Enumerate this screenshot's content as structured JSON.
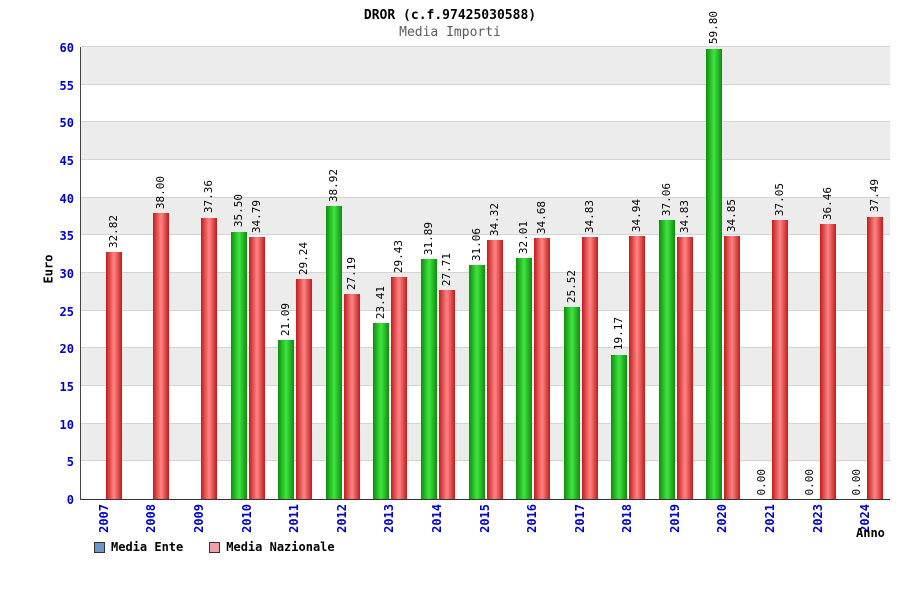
{
  "header": {
    "title": "DROR (c.f.97425030588)",
    "subtitle": "Media Importi"
  },
  "axes": {
    "y_label": "Euro",
    "x_label": "Anno"
  },
  "legend": {
    "items": [
      {
        "label": "Media Ente",
        "swatch_color": "#6e96c8"
      },
      {
        "label": "Media Nazionale",
        "swatch_color": "#f0a0a8"
      }
    ]
  },
  "chart_data": {
    "type": "bar",
    "title": "Media Importi",
    "xlabel": "Anno",
    "ylabel": "Euro",
    "ylim": [
      0,
      60
    ],
    "ytick_step": 5,
    "grid": true,
    "legend_position": "bottom-left",
    "tick_color": "#0000cc",
    "band_color": "#ececec",
    "grid_color": "#d4d4d4",
    "value_label_decimals": 2,
    "categories": [
      "2007",
      "2008",
      "2009",
      "2010",
      "2011",
      "2012",
      "2013",
      "2014",
      "2015",
      "2016",
      "2017",
      "2018",
      "2019",
      "2020",
      "2021",
      "2023",
      "2024"
    ],
    "series": [
      {
        "name": "Media Ente",
        "bar_edge_color": "#0e8c0e",
        "bar_mid_color": "#3fe53f",
        "values": [
          null,
          null,
          null,
          35.5,
          21.09,
          38.92,
          23.41,
          31.89,
          31.06,
          32.01,
          25.52,
          19.17,
          37.06,
          59.8,
          0.0,
          0.0,
          0.0
        ]
      },
      {
        "name": "Media Nazionale",
        "bar_edge_color": "#c41a1a",
        "bar_mid_color": "#ff8585",
        "values": [
          32.82,
          38.0,
          37.36,
          34.79,
          29.24,
          27.19,
          29.43,
          27.71,
          34.32,
          34.68,
          34.83,
          34.94,
          34.83,
          34.85,
          37.05,
          36.46,
          37.49
        ]
      }
    ]
  }
}
